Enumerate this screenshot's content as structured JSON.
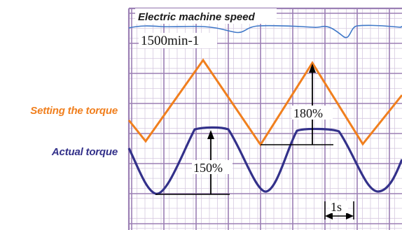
{
  "colors": {
    "grid_major": "#9b7fb4",
    "grid_minor": "#d6c9e0",
    "speed_trace": "#3f78c8",
    "setting_torque": "#f07f1e",
    "actual_torque": "#33318a",
    "annotation": "#000000"
  },
  "chart_data": {
    "type": "line",
    "title": "",
    "xlabel": "",
    "ylabel": "",
    "grid": true,
    "time_scale_label": "1s",
    "series": [
      {
        "name": "Electric machine speed",
        "value_label": "1500min-1",
        "shape": "flat line with small ripples",
        "x": [
          0,
          1,
          2,
          3,
          4,
          5,
          6,
          7,
          8
        ],
        "y": [
          1500,
          1500,
          1500,
          1500,
          1500,
          1500,
          1500,
          1500,
          1500
        ]
      },
      {
        "name": "Setting the torque",
        "shape": "triangle wave",
        "x": [
          0.0,
          0.7,
          3.4,
          6.0,
          8.6,
          11.2,
          12.0
        ],
        "y": [
          30,
          0,
          100,
          0,
          100,
          0,
          40
        ],
        "peak_label": "180%"
      },
      {
        "name": "Actual torque",
        "shape": "sine wave with flattened tops",
        "x": [
          0,
          1,
          2,
          3,
          4,
          5,
          6,
          7,
          8,
          9,
          10,
          11,
          12
        ],
        "y": [
          60,
          10,
          40,
          100,
          95,
          30,
          0,
          60,
          100,
          95,
          25,
          0,
          70
        ],
        "peak_label": "150%"
      }
    ]
  },
  "labels": {
    "speed_title": "Electric machine speed",
    "speed_value": "1500min-1",
    "setting_torque": "Setting the torque",
    "actual_torque": "Actual torque",
    "actual_peak": "150%",
    "setting_peak": "180%",
    "time_scale": "1s"
  }
}
